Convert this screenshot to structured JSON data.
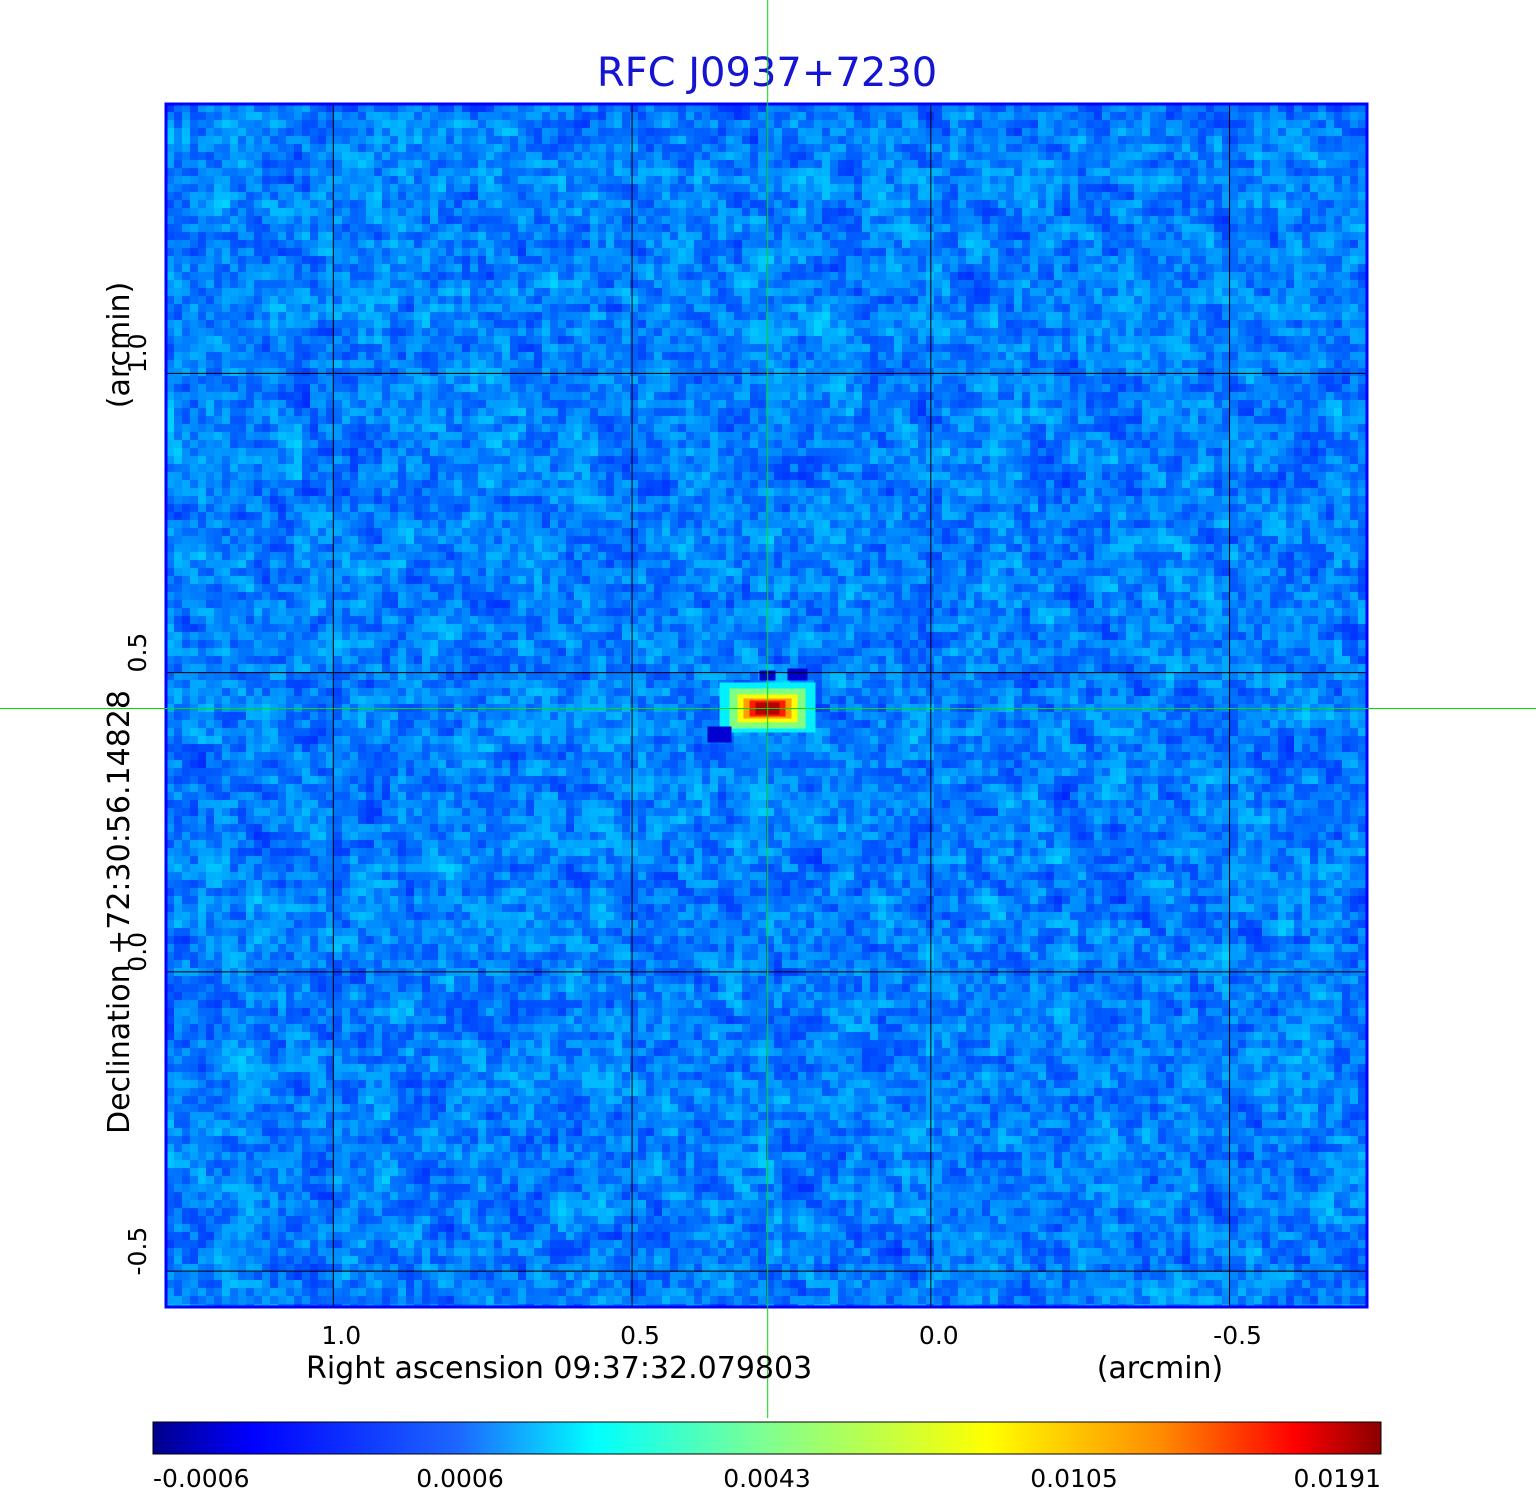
{
  "chart_data": {
    "type": "heatmap",
    "title": "RFC J0937+7230",
    "xlabel": "Right ascension  09:37:32.079803",
    "xunit": "(arcmin)",
    "ylabel": "Declination  +72:30:56.14828",
    "yunit": "(arcmin)",
    "x_axis_reversed": true,
    "xlim": [
      1.28,
      -0.73
    ],
    "ylim": [
      -0.56,
      1.45
    ],
    "x_ticks": [
      1.0,
      0.5,
      0.0,
      -0.5
    ],
    "x_tick_labels": [
      "1.0",
      "0.5",
      "0.0",
      "-0.5"
    ],
    "y_ticks": [
      1.0,
      0.5,
      0.0,
      -0.5
    ],
    "y_tick_labels": [
      "1.0",
      "0.5",
      "0.0",
      "-0.5"
    ],
    "grid": true,
    "crosshair": {
      "x": 0.273,
      "y": 0.44,
      "color": "#00dd00"
    },
    "source_peak": {
      "x": 0.273,
      "y": 0.44,
      "value": 0.0191,
      "description_of_shape": "compact, slightly elongated east-west"
    },
    "colormap": "jet",
    "colorbar": {
      "ticks": [
        -0.0006,
        0.0006,
        0.0043,
        0.0105,
        0.0191
      ],
      "tick_labels": [
        "-0.0006",
        "0.0006",
        "0.0043",
        "0.0105",
        "0.0191"
      ],
      "colors": [
        "#00008b",
        "#0000ff",
        "#00ffff",
        "#ffff00",
        "#ff0000",
        "#8b0000"
      ]
    },
    "background_level": 0.0002,
    "noise_level": 0.0004
  },
  "colors": {
    "title": "#1414d2",
    "frame": "#0000ff",
    "grid": "#000000",
    "crosshair": "#00dd00"
  }
}
